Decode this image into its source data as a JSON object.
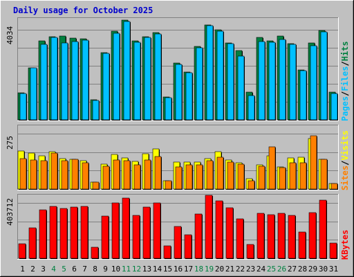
{
  "colors": {
    "background": "#c0c0c0",
    "hits": "#008040",
    "files": "#00c0ff",
    "pages": "#00c0ff",
    "visits": "#ffff00",
    "sites": "#ff8000",
    "kbytes": "#ff0000",
    "title": "#0000cc",
    "weekend": "#008040",
    "weekday": "#000000"
  },
  "chart_data": {
    "type": "bar",
    "title": "Daily usage for October 2025",
    "categories": [
      "1",
      "2",
      "3",
      "4",
      "5",
      "6",
      "7",
      "8",
      "9",
      "10",
      "11",
      "12",
      "13",
      "14",
      "15",
      "16",
      "17",
      "18",
      "19",
      "20",
      "21",
      "22",
      "23",
      "24",
      "25",
      "26",
      "27",
      "28",
      "29",
      "30",
      "31"
    ],
    "weekend_days": [
      "4",
      "5",
      "11",
      "12",
      "18",
      "19",
      "25",
      "26"
    ],
    "panels": [
      {
        "id": "hits-files-pages",
        "ymax_label": "4034",
        "ymax": 4034,
        "legend": [
          "Pages",
          "/",
          "Files",
          "/",
          "Hits"
        ],
        "series": [
          {
            "name": "Hits",
            "values": [
              1210,
              2350,
              3560,
              3730,
              3760,
              3670,
              3630,
              900,
              3030,
              3990,
              4480,
              3540,
              3750,
              3930,
              1030,
              2540,
              2150,
              3300,
              4270,
              4040,
              3450,
              3120,
              1230,
              3710,
              3560,
              3780,
              3430,
              2240,
              3450,
              4010,
              1260
            ]
          },
          {
            "name": "Files",
            "values": [
              1180,
              2330,
              3400,
              3700,
              3460,
              3530,
              3590,
              870,
              3000,
              3900,
              4420,
              3480,
              3700,
              3850,
              990,
              2490,
              2110,
              3240,
              4240,
              3990,
              3410,
              2860,
              1100,
              3510,
              3490,
              3600,
              3380,
              2220,
              3340,
              3960,
              1180
            ]
          }
        ]
      },
      {
        "id": "visits-sites",
        "ymax_label": "275",
        "ymax": 275,
        "legend": [
          "Sites",
          "/",
          "Visits"
        ],
        "series": [
          {
            "name": "Visits",
            "values": [
              190,
              180,
              165,
              185,
              150,
              148,
              140,
              35,
              125,
              170,
              155,
              138,
              175,
              200,
              40,
              135,
              135,
              135,
              150,
              185,
              145,
              130,
              50,
              120,
              165,
              110,
              155,
              158,
              250,
              148,
              28
            ]
          },
          {
            "name": "Sites",
            "values": [
              150,
              145,
              142,
              180,
              140,
              148,
              130,
              35,
              115,
              145,
              140,
              120,
              145,
              160,
              40,
              110,
              120,
              120,
              140,
              158,
              135,
              125,
              40,
              115,
              210,
              105,
              130,
              130,
              265,
              148,
              28
            ]
          }
        ]
      },
      {
        "id": "kbytes",
        "ymax_label": "403712",
        "ymax": 403712,
        "legend": [
          "KBytes"
        ],
        "series": [
          {
            "name": "KBytes",
            "values": [
              108000,
              220000,
              352000,
              380000,
              365000,
              372000,
              377000,
              82000,
              308000,
              403000,
              440000,
              310000,
              375000,
              402000,
              90000,
              231000,
              171000,
              324000,
              458000,
              420000,
              370000,
              285000,
              100000,
              330000,
              320000,
              328000,
              310000,
              194000,
              335000,
              424000,
              110000
            ]
          }
        ]
      }
    ]
  }
}
